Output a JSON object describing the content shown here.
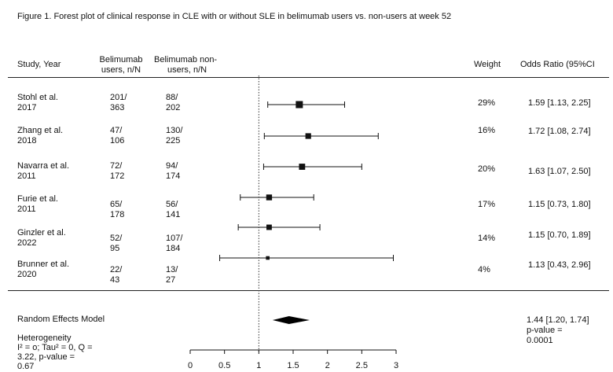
{
  "caption": "Figure 1. Forest plot of clinical response in CLE with or without SLE in belimumab users vs. non-users at week 52",
  "headers": {
    "study": "Study, Year",
    "users_l1": "Belimumab",
    "users_l2": "users, n/N",
    "nonusers_l1": "Belimumab non-",
    "nonusers_l2": "users, n/N",
    "weight": "Weight",
    "or": "Odds Ratio (95%CI"
  },
  "rows": [
    {
      "study_l1": "Stohl et al.",
      "study_l2": "2017",
      "u_l1": "201/",
      "u_l2": "363",
      "n_l1": "88/",
      "n_l2": "202",
      "weight": "29%",
      "or_text": "1.59 [1.13, 2.25]"
    },
    {
      "study_l1": "Zhang et al.",
      "study_l2": "2018",
      "u_l1": "47/",
      "u_l2": "106",
      "n_l1": "130/",
      "n_l2": "225",
      "weight": "16%",
      "or_text": "1.72 [1.08, 2.74]"
    },
    {
      "study_l1": "Navarra et al.",
      "study_l2": "2011",
      "u_l1": "72/",
      "u_l2": "172",
      "n_l1": "94/",
      "n_l2": "174",
      "weight": "20%",
      "or_text": "1.63 [1.07, 2.50]"
    },
    {
      "study_l1": "Furie et al.",
      "study_l2": "2011",
      "u_l1": "65/",
      "u_l2": "178",
      "n_l1": "56/",
      "n_l2": "141",
      "weight": "17%",
      "or_text": "1.15 [0.73, 1.80]"
    },
    {
      "study_l1": "Ginzler et al.",
      "study_l2": "2022",
      "u_l1": "52/",
      "u_l2": "95",
      "n_l1": "107/",
      "n_l2": "184",
      "weight": "14%",
      "or_text": "1.15 [0.70, 1.89]"
    },
    {
      "study_l1": "Brunner et al.",
      "study_l2": "2020",
      "u_l1": "22/",
      "u_l2": "43",
      "n_l1": "13/",
      "n_l2": "27",
      "weight": "4%",
      "or_text": "1.13 [0.43, 2.96]"
    }
  ],
  "summary": {
    "label": "Random Effects Model",
    "or_text": "1.44 [1.20, 1.74]",
    "pvalue_l1": "p-value =",
    "pvalue_l2": "0.0001"
  },
  "heterogeneity": {
    "l1": "Heterogeneity",
    "l2": "I² = o; Tau² = 0, Q =",
    "l3": "3.22, p-value =",
    "l4": "0.67"
  },
  "chart_data": {
    "type": "forest",
    "categories": [
      "Stohl et al. 2017",
      "Zhang et al. 2018",
      "Navarra et al. 2011",
      "Furie et al. 2011",
      "Ginzler et al. 2022",
      "Brunner et al. 2020"
    ],
    "or": [
      1.59,
      1.72,
      1.63,
      1.15,
      1.15,
      1.13
    ],
    "ci_low": [
      1.13,
      1.08,
      1.07,
      0.73,
      0.7,
      0.43
    ],
    "ci_high": [
      2.25,
      2.74,
      2.5,
      1.8,
      1.89,
      2.96
    ],
    "weights": [
      29,
      16,
      20,
      17,
      14,
      4
    ],
    "pooled": {
      "or": 1.44,
      "ci_low": 1.2,
      "ci_high": 1.74
    },
    "reference_line": 1,
    "xlim": [
      0,
      3
    ],
    "xticks": [
      "0",
      "0.5",
      "1",
      "1.5",
      "2",
      "2.5",
      "3"
    ]
  }
}
